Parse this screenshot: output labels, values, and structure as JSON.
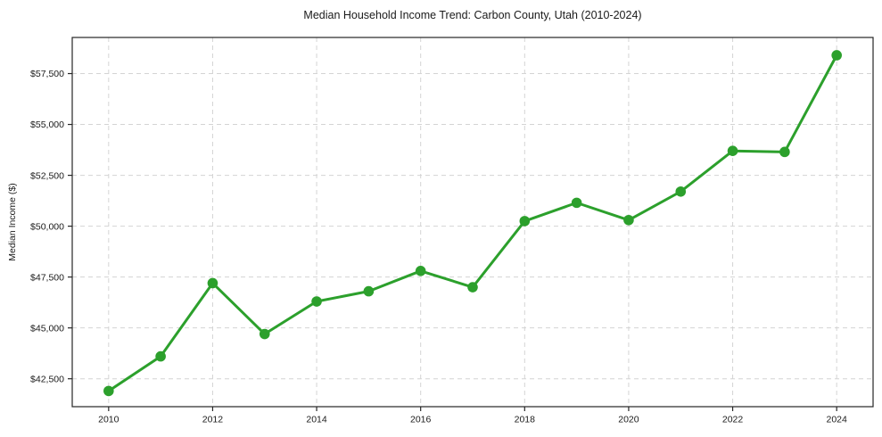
{
  "title": "Median Household Income Trend: Carbon County, Utah (2010-2024)",
  "colors": {
    "line": "#2ca02c",
    "grid": "#d4d4d4",
    "axis": "#262626",
    "text": "#1a1a1a",
    "background": "#ffffff"
  },
  "chart_data": {
    "type": "line",
    "title": "Median Household Income Trend: Carbon County, Utah (2010-2024)",
    "xlabel": "",
    "ylabel": "Median Income ($)",
    "series": [
      {
        "name": "Median Household Income",
        "x": [
          2010,
          2011,
          2012,
          2013,
          2014,
          2015,
          2016,
          2017,
          2018,
          2019,
          2020,
          2021,
          2022,
          2023,
          2024
        ],
        "values": [
          41900,
          43600,
          47200,
          44700,
          46300,
          46800,
          47800,
          47000,
          50250,
          51150,
          50300,
          51700,
          53700,
          53650,
          58400
        ]
      }
    ],
    "marker": "circle",
    "line_width": 3,
    "marker_radius": 5.8,
    "grid": true,
    "grid_style": "dashed",
    "legend_position": "none",
    "xlim": [
      2009.3,
      2024.7
    ],
    "ylim": [
      41128,
      59276
    ],
    "x_ticks": [
      2010,
      2012,
      2014,
      2016,
      2018,
      2020,
      2022,
      2024
    ],
    "x_tick_labels": [
      "2010",
      "2012",
      "2014",
      "2016",
      "2018",
      "2020",
      "2022",
      "2024"
    ],
    "y_ticks": [
      42500,
      45000,
      47500,
      50000,
      52500,
      55000,
      57500
    ],
    "y_tick_labels": [
      "$42,500",
      "$45,000",
      "$47,500",
      "$50,000",
      "$52,500",
      "$55,000",
      "$57,500"
    ]
  }
}
